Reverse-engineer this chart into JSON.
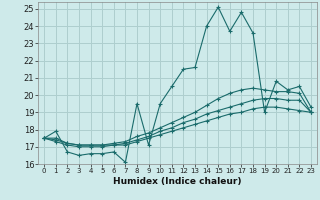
{
  "xlabel": "Humidex (Indice chaleur)",
  "bg_color": "#ceeaea",
  "grid_color": "#aecece",
  "line_color": "#1a6b6b",
  "xlim": [
    -0.5,
    23.5
  ],
  "ylim": [
    16,
    25.4
  ],
  "xticks": [
    0,
    1,
    2,
    3,
    4,
    5,
    6,
    7,
    8,
    9,
    10,
    11,
    12,
    13,
    14,
    15,
    16,
    17,
    18,
    19,
    20,
    21,
    22,
    23
  ],
  "yticks": [
    16,
    17,
    18,
    19,
    20,
    21,
    22,
    23,
    24,
    25
  ],
  "series": [
    {
      "x": [
        0,
        1,
        2,
        3,
        4,
        5,
        6,
        7,
        8,
        9,
        10,
        11,
        12,
        13,
        14,
        15,
        16,
        17,
        18,
        19,
        20,
        21,
        22,
        23
      ],
      "y": [
        17.5,
        17.9,
        16.7,
        16.5,
        16.6,
        16.6,
        16.7,
        16.1,
        19.5,
        17.1,
        19.5,
        20.5,
        21.5,
        21.6,
        24.0,
        25.1,
        23.7,
        24.8,
        23.6,
        19.0,
        20.8,
        20.3,
        20.5,
        19.3
      ]
    },
    {
      "x": [
        0,
        1,
        2,
        3,
        4,
        5,
        6,
        7,
        8,
        9,
        10,
        11,
        12,
        13,
        14,
        15,
        16,
        17,
        18,
        19,
        20,
        21,
        22,
        23
      ],
      "y": [
        17.5,
        17.5,
        17.2,
        17.1,
        17.1,
        17.1,
        17.2,
        17.3,
        17.6,
        17.8,
        18.1,
        18.4,
        18.7,
        19.0,
        19.4,
        19.8,
        20.1,
        20.3,
        20.4,
        20.3,
        20.2,
        20.2,
        20.1,
        19.0
      ]
    },
    {
      "x": [
        0,
        1,
        2,
        3,
        4,
        5,
        6,
        7,
        8,
        9,
        10,
        11,
        12,
        13,
        14,
        15,
        16,
        17,
        18,
        19,
        20,
        21,
        22,
        23
      ],
      "y": [
        17.5,
        17.4,
        17.2,
        17.1,
        17.1,
        17.1,
        17.1,
        17.2,
        17.4,
        17.6,
        17.9,
        18.1,
        18.4,
        18.6,
        18.9,
        19.1,
        19.3,
        19.5,
        19.7,
        19.8,
        19.8,
        19.7,
        19.7,
        19.0
      ]
    },
    {
      "x": [
        0,
        1,
        2,
        3,
        4,
        5,
        6,
        7,
        8,
        9,
        10,
        11,
        12,
        13,
        14,
        15,
        16,
        17,
        18,
        19,
        20,
        21,
        22,
        23
      ],
      "y": [
        17.5,
        17.3,
        17.1,
        17.0,
        17.0,
        17.0,
        17.1,
        17.1,
        17.3,
        17.5,
        17.7,
        17.9,
        18.1,
        18.3,
        18.5,
        18.7,
        18.9,
        19.0,
        19.2,
        19.3,
        19.3,
        19.2,
        19.1,
        19.0
      ]
    }
  ]
}
